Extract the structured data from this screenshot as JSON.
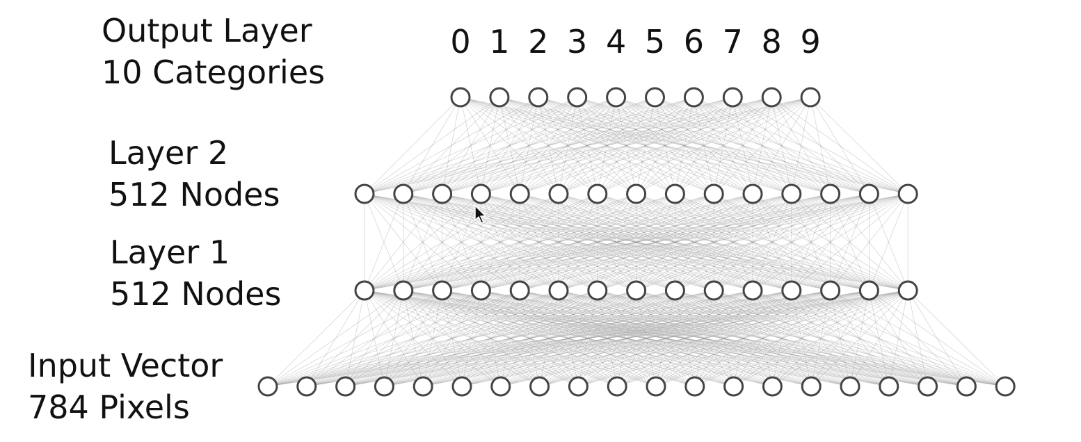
{
  "colors": {
    "node_fill": "#ffffff",
    "node_stroke": "#444444",
    "edge": "#8a8a8a",
    "text": "#111111"
  },
  "labels": {
    "output": {
      "line1": "Output Layer",
      "line2": "10 Categories"
    },
    "layer2": {
      "line1": "Layer 2",
      "line2": "512 Nodes"
    },
    "layer1": {
      "line1": "Layer 1",
      "line2": "512 Nodes"
    },
    "input": {
      "line1": "Input Vector",
      "line2": "784 Pixels"
    }
  },
  "output_digits": [
    "0",
    "1",
    "2",
    "3",
    "4",
    "5",
    "6",
    "7",
    "8",
    "9"
  ],
  "layers": [
    {
      "id": "input",
      "shown_nodes": 20
    },
    {
      "id": "layer1",
      "shown_nodes": 15
    },
    {
      "id": "layer2",
      "shown_nodes": 15
    },
    {
      "id": "output",
      "shown_nodes": 10
    }
  ],
  "icons": {
    "cursor": "mouse-pointer-icon"
  }
}
